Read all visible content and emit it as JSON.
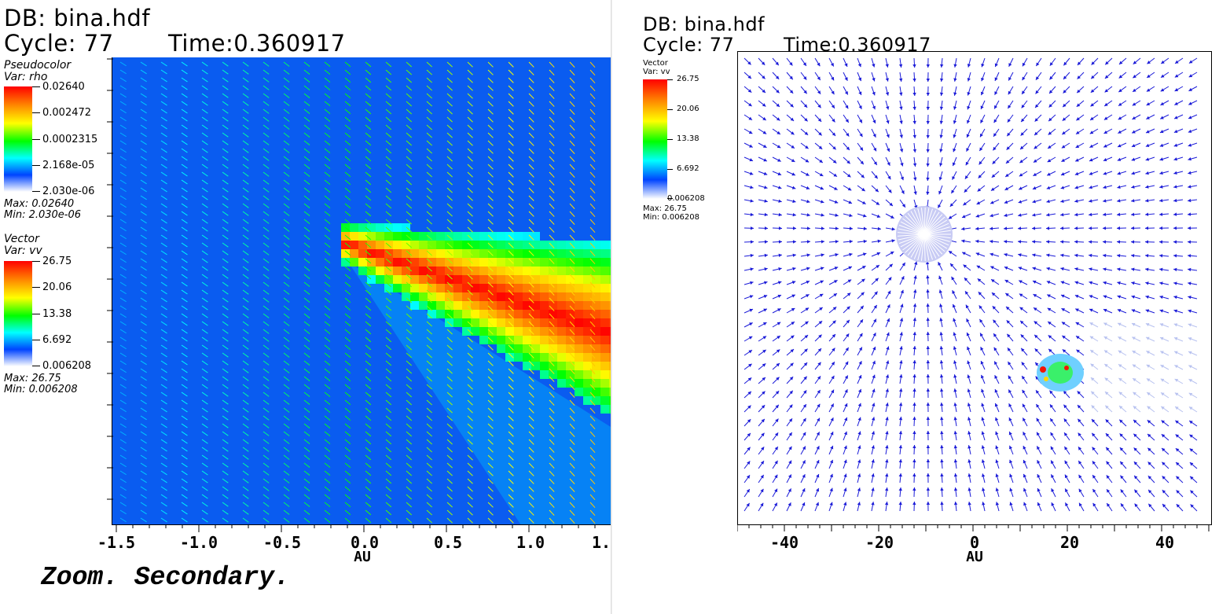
{
  "left": {
    "db": "DB: bina.hdf",
    "cycle": "Cycle: 77",
    "time": "Time:0.360917",
    "legend_pc": {
      "title": "Pseudocolor",
      "var": "Var: rho",
      "ticks": [
        "0.02640",
        "0.002472",
        "0.0002315",
        "2.168e-05",
        "2.030e-06"
      ],
      "max": "Max:  0.02640",
      "min": "Min:  2.030e-06"
    },
    "legend_vec": {
      "title": "Vector",
      "var": "Var: vv",
      "ticks": [
        "26.75",
        "20.06",
        "13.38",
        "6.692",
        "0.006208"
      ],
      "max": "Max:  26.75",
      "min": "Min:  0.006208"
    },
    "x_ticks": [
      "-1.5",
      "-1.0",
      "-0.5",
      "0.0",
      "0.5",
      "1.0",
      "1."
    ],
    "x_label": "AU",
    "caption": "Zoom. Secondary."
  },
  "right": {
    "db": "DB: bina.hdf",
    "cycle": "Cycle: 77",
    "time": "Time:0.360917",
    "legend_vec": {
      "title": "Vector",
      "var": "Var: vv",
      "ticks": [
        "26.75",
        "20.06",
        "13.38",
        "6.692",
        "0.006208"
      ],
      "max": "Max:  26.75",
      "min": "Min:  0.006208"
    },
    "x_ticks": [
      "-40",
      "-20",
      "0",
      "20",
      "40"
    ],
    "x_label": "AU"
  },
  "colors": {
    "field_blue": "#0a5cf0",
    "vector_blue": "#1a1ad8",
    "hot_red": "#f41400",
    "background": "#ffffff"
  }
}
